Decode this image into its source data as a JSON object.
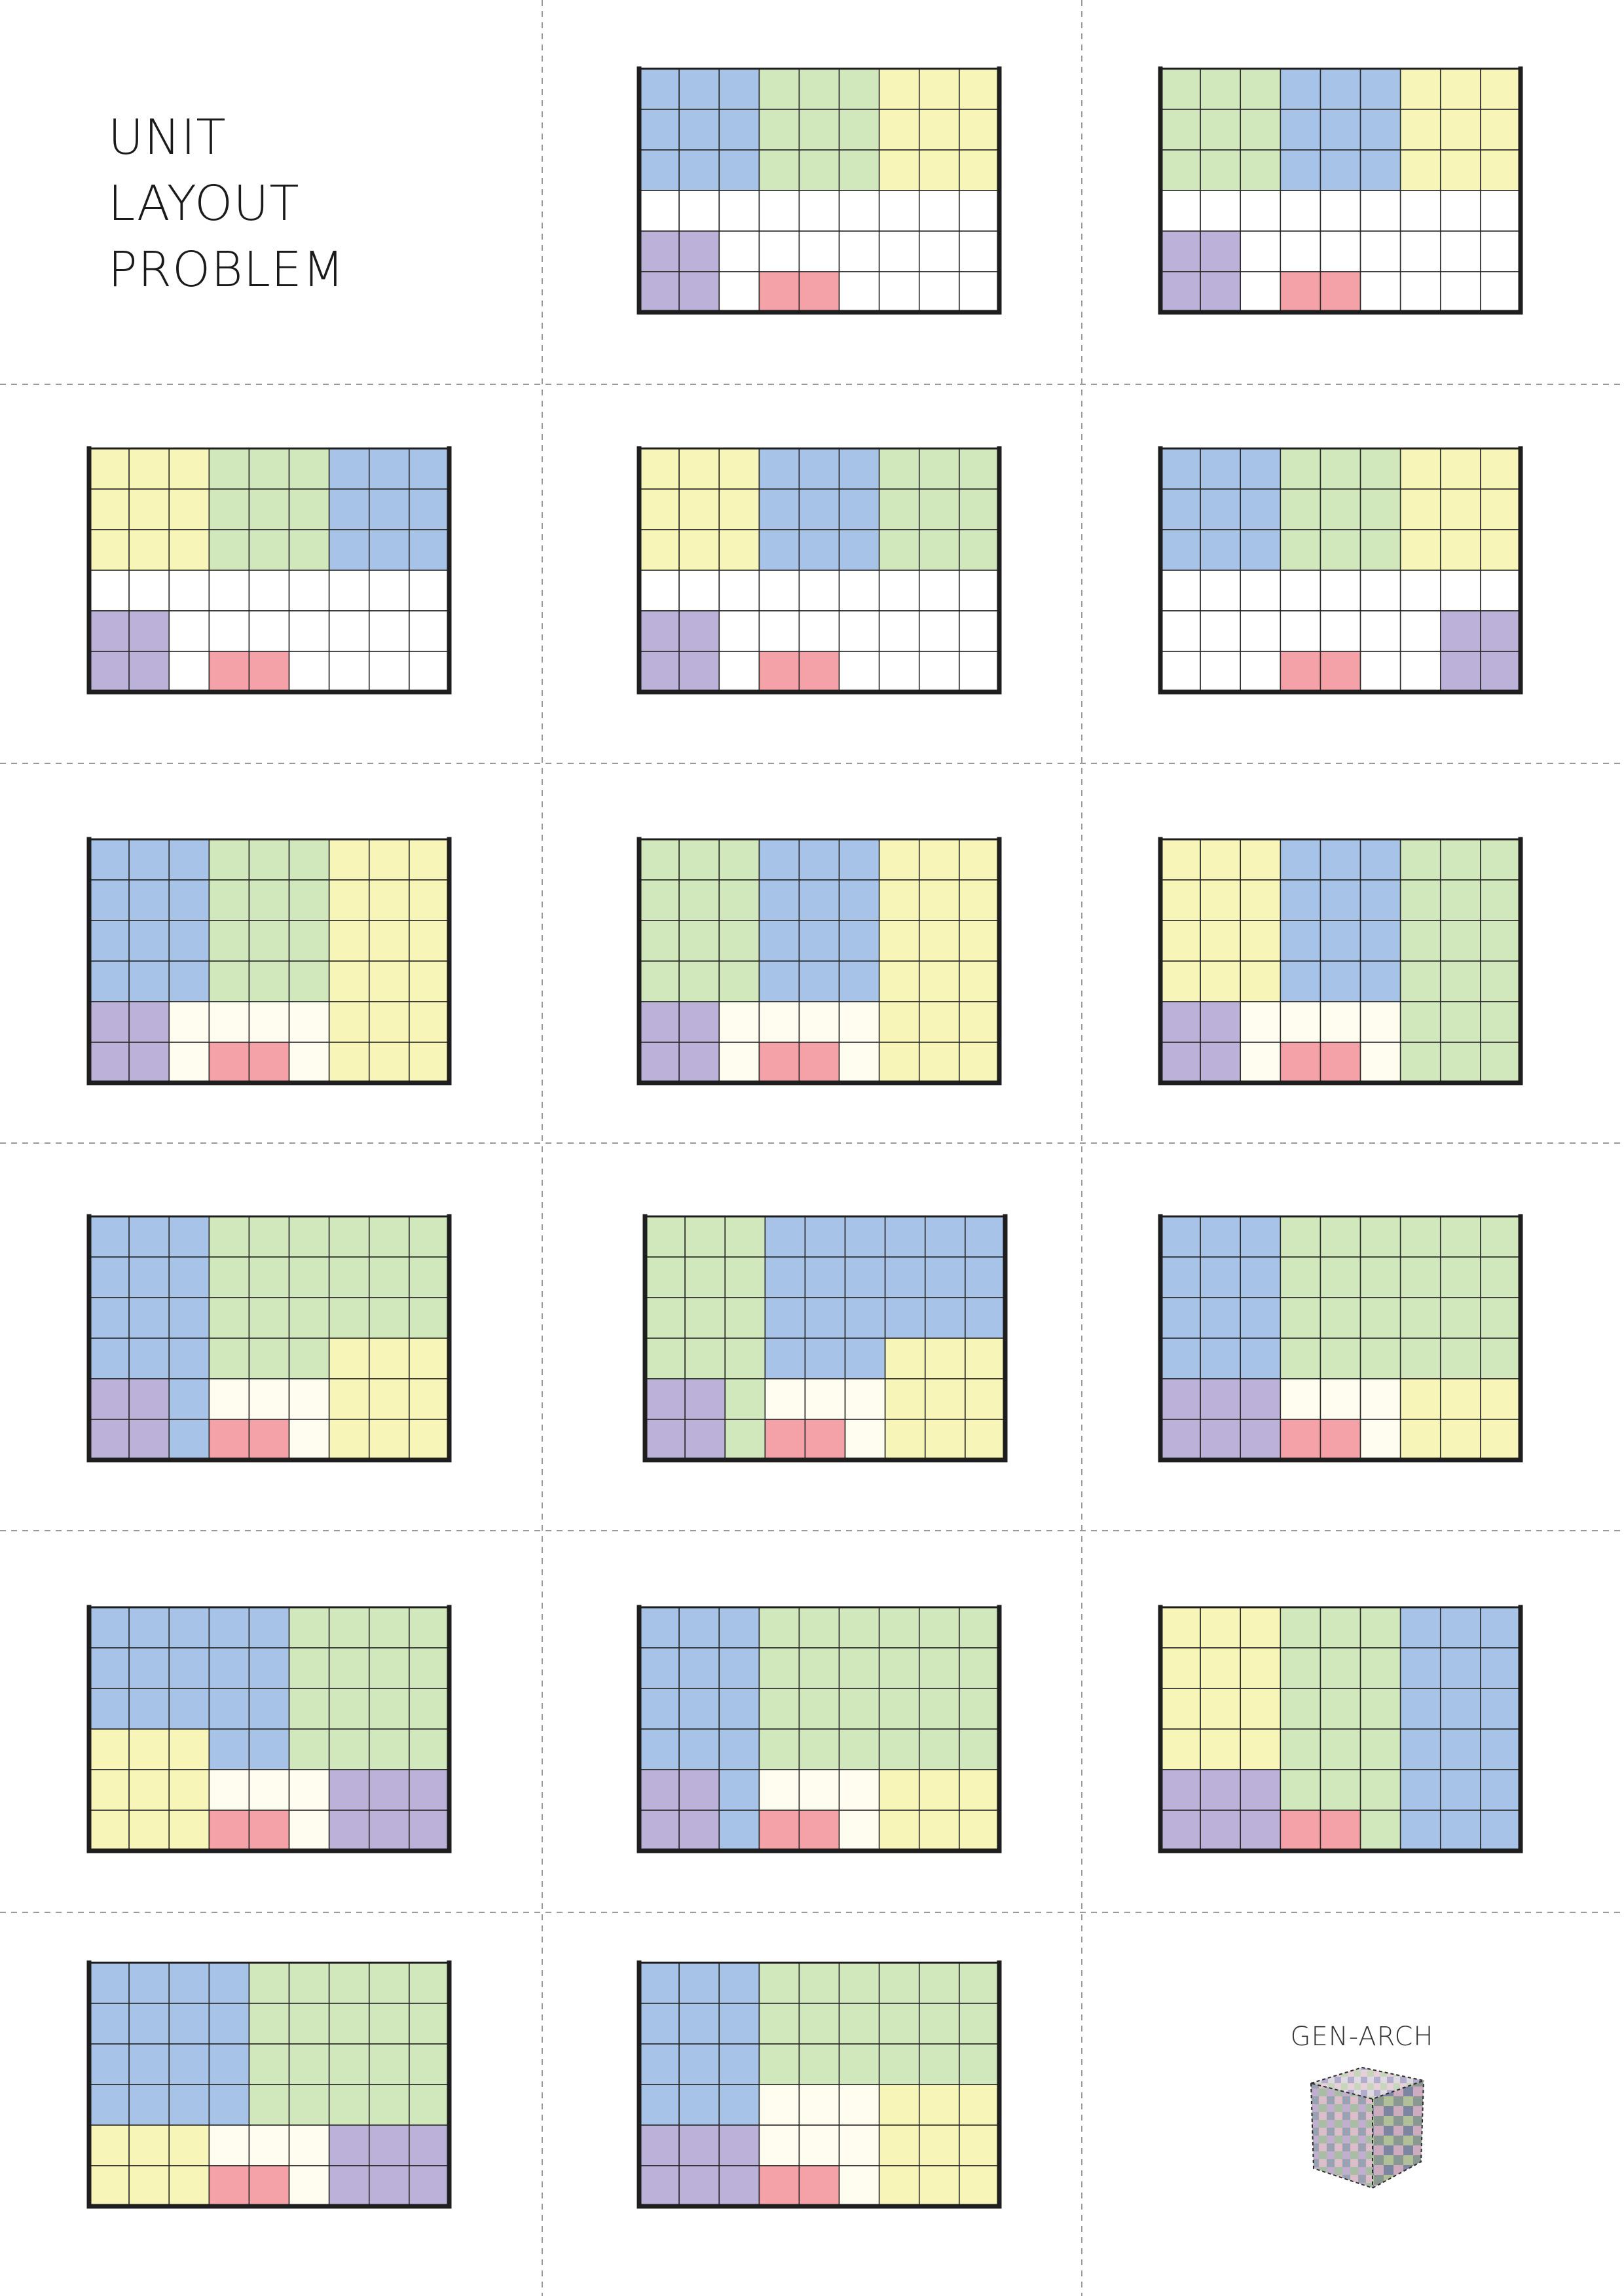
{
  "title_lines": [
    "UNIT",
    "LAYOUT",
    "PROBLEM"
  ],
  "logo": {
    "label": "GEN-ARCH",
    "icon": "cube-logo-icon"
  },
  "colors": {
    "blue": "#a7c3e7",
    "green": "#d0e8bb",
    "yellow": "#f7f5b7",
    "purple": "#bcb1d8",
    "pink": "#f4a1a8",
    "cream": "#fefdef",
    "white": "#ffffff",
    "gridline": "#2b2b2b",
    "cut_line": "#9a9a9a"
  },
  "grid": {
    "columns": 9,
    "rows": 6
  },
  "legend_codes": {
    "B": "blue",
    "G": "green",
    "Y": "yellow",
    "P": "purple",
    "R": "pink",
    "C": "cream",
    "W": "white"
  },
  "plans": [
    [
      "BBBGGGYYY",
      "BBBGGGYYY",
      "BBBGGGYYY",
      "WWWWWWWWW",
      "PPWWWWWWW",
      "PPWRRWWWW"
    ],
    [
      "GGGBBBYYY",
      "GGGBBBYYY",
      "GGGBBBYYY",
      "WWWWWWWWW",
      "PPWWWWWWW",
      "PPWRRWWWW"
    ],
    [
      "YYYGGGBBB",
      "YYYGGGBBB",
      "YYYGGGBBB",
      "WWWWWWWWW",
      "PPWWWWWWW",
      "PPWRRWWWW"
    ],
    [
      "YYYBBBGGG",
      "YYYBBBGGG",
      "YYYBBBGGG",
      "WWWWWWWWW",
      "PPWWWWWWW",
      "PPWRRWWWW"
    ],
    [
      "BBBGGGYYY",
      "BBBGGGYYY",
      "BBBGGGYYY",
      "WWWWWWWWW",
      "WWWWWWWPP",
      "WWWRRWWPP"
    ],
    [
      "BBBGGGYYY",
      "BBBGGGYYY",
      "BBBGGGYYY",
      "BBBGGGYYY",
      "PPCCCCYYY",
      "PPCRRCYYY"
    ],
    [
      "GGGBBBYYY",
      "GGGBBBYYY",
      "GGGBBBYYY",
      "GGGBBBYYY",
      "PPCCCCYYY",
      "PPCRRCYYY"
    ],
    [
      "YYYBBBGGG",
      "YYYBBBGGG",
      "YYYBBBGGG",
      "YYYBBBGGG",
      "PPCCCCGGG",
      "PPCRRCGGG"
    ],
    [
      "BBBGGGGGG",
      "BBBGGGGGG",
      "BBBGGGGGG",
      "BBBGGGYYY",
      "PPBCCCYYY",
      "PPBRRCYYY"
    ],
    [
      "GGGBBBBBB",
      "GGGBBBBBB",
      "GGGBBBBBB",
      "GGGBBBYYY",
      "PPGCCCYYY",
      "PPGRRCYYY"
    ],
    [
      "BBBGGGGGG",
      "BBBGGGGGG",
      "BBBGGGGGG",
      "BBBGGGGGG",
      "PPPCCCYYY",
      "PPPRRCYYY"
    ],
    [
      "BBBBBGGGG",
      "BBBBBGGGG",
      "BBBBBGGGG",
      "YYYBBGGGG",
      "YYYCCCPPP",
      "YYYRRCPPP"
    ],
    [
      "BBBGGGGGG",
      "BBBGGGGGG",
      "BBBGGGGGG",
      "BBBGGGGGG",
      "PPBCCCYYY",
      "PPBRRCYYY"
    ],
    [
      "YYYGGGBBB",
      "YYYGGGBBB",
      "YYYGGGBBB",
      "YYYGGGBBB",
      "PPPGGGBBB",
      "PPPRRGBBB"
    ],
    [
      "BBBBGGGGG",
      "BBBBGGGGG",
      "BBBBGGGGG",
      "BBBBGGGGG",
      "YYYCCCPPP",
      "YYYRRCPPP"
    ],
    [
      "BBBGGGGGG",
      "BBBGGGGGG",
      "BBBGGGGGG",
      "BBBCCCYYY",
      "PPPCCCYYY",
      "PPPRRCYYY"
    ]
  ]
}
